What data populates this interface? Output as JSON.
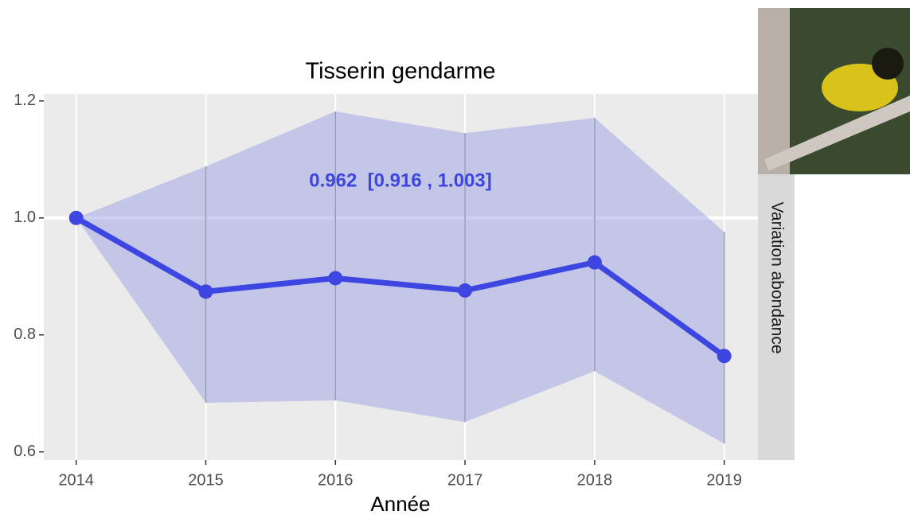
{
  "chart_data": {
    "type": "line",
    "title": "Tisserin gendarme",
    "x_label": "Année",
    "strip_label": "Variation abondance",
    "annotation": "0.962  [0.916 , 1.003]",
    "x": [
      2014,
      2015,
      2016,
      2017,
      2018,
      2019
    ],
    "values": [
      1.0,
      0.874,
      0.897,
      0.876,
      0.924,
      0.764
    ],
    "lower": [
      1.0,
      0.684,
      0.688,
      0.651,
      0.738,
      0.614
    ],
    "upper": [
      1.0,
      1.088,
      1.182,
      1.145,
      1.171,
      0.976
    ],
    "color": "#3d46e0",
    "band_color": "#9ea2e6",
    "xlim": [
      2013.75,
      2019.26
    ],
    "ylim": [
      0.586,
      1.212
    ],
    "xticks": [
      2014,
      2015,
      2016,
      2017,
      2018,
      2019
    ],
    "yticks": [
      0.6,
      0.8,
      {
        "value": 1.0,
        "label": "1.0"
      },
      1.2
    ],
    "hline": 1.0,
    "grid": true
  }
}
